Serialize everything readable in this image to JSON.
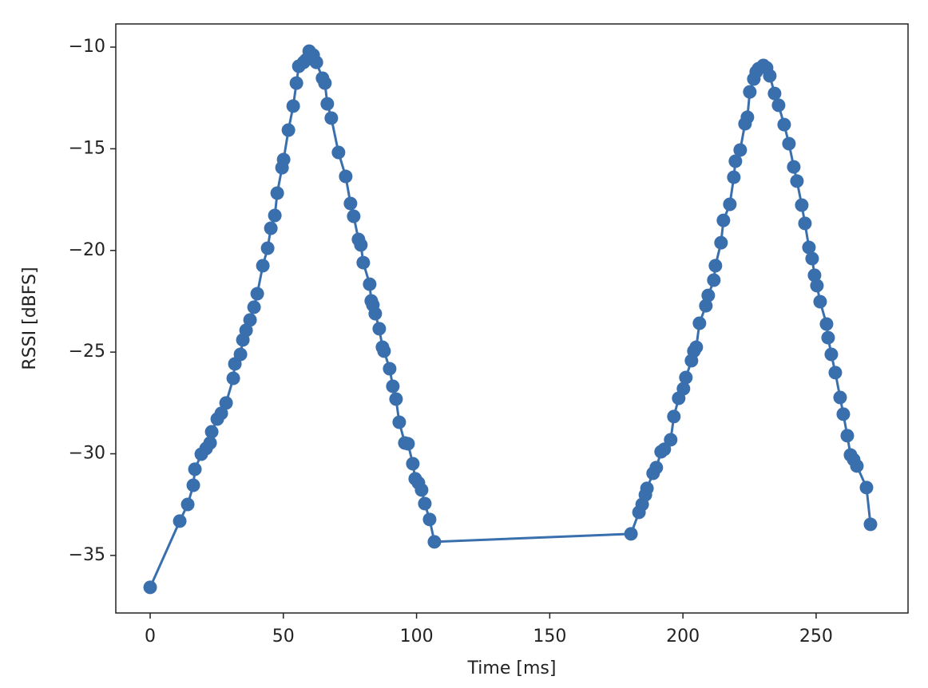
{
  "chart_data": {
    "type": "line",
    "xlabel": "Time [ms]",
    "ylabel": "RSSI [dBFS]",
    "color": "#3a6fae",
    "marker": "o",
    "grid": false,
    "x": [
      0,
      11.1,
      14.1,
      16.2,
      16.8,
      19.2,
      21.0,
      22.5,
      23.1,
      25.2,
      26.7,
      28.5,
      31.2,
      31.8,
      33.9,
      34.8,
      36.0,
      37.5,
      39.0,
      40.2,
      42.3,
      44.1,
      45.3,
      46.8,
      47.7,
      49.5,
      50.1,
      51.9,
      53.7,
      54.9,
      55.8,
      57.6,
      58.5,
      59.7,
      61.2,
      62.4,
      64.7,
      65.6,
      66.5,
      68.0,
      70.7,
      73.4,
      75.2,
      76.4,
      78.2,
      79.1,
      80.0,
      82.4,
      83.0,
      83.6,
      84.5,
      86.0,
      87.2,
      87.8,
      89.9,
      91.1,
      92.3,
      93.5,
      95.6,
      96.8,
      98.6,
      99.5,
      100.7,
      101.9,
      103.1,
      104.9,
      106.7,
      180.5,
      183.5,
      184.7,
      185.9,
      186.5,
      188.8,
      190.0,
      191.8,
      193.0,
      195.4,
      196.6,
      198.4,
      200.2,
      201.1,
      203.2,
      204.1,
      205.0,
      206.2,
      208.6,
      209.5,
      211.6,
      212.2,
      214.3,
      215.2,
      217.6,
      219.1,
      219.7,
      221.5,
      223.3,
      224.2,
      225.1,
      226.6,
      227.5,
      228.4,
      230.2,
      231.4,
      232.6,
      234.4,
      235.9,
      238.0,
      239.8,
      241.6,
      242.8,
      244.6,
      245.8,
      247.3,
      248.5,
      249.4,
      250.3,
      251.5,
      253.9,
      254.5,
      255.7,
      257.2,
      259.0,
      260.2,
      261.7,
      262.9,
      264.1,
      265.3,
      268.9,
      270.4
    ],
    "values": [
      -36.57,
      -33.31,
      -32.49,
      -31.55,
      -30.76,
      -30.02,
      -29.74,
      -29.47,
      -28.92,
      -28.29,
      -28.01,
      -27.5,
      -26.29,
      -25.58,
      -25.11,
      -24.4,
      -23.93,
      -23.42,
      -22.79,
      -22.13,
      -20.75,
      -19.89,
      -18.91,
      -18.28,
      -17.18,
      -15.93,
      -15.53,
      -14.08,
      -12.9,
      -11.77,
      -10.94,
      -10.75,
      -10.63,
      -10.2,
      -10.39,
      -10.75,
      -11.53,
      -11.77,
      -12.79,
      -13.49,
      -15.18,
      -16.36,
      -17.69,
      -18.32,
      -19.46,
      -19.73,
      -20.6,
      -21.66,
      -22.48,
      -22.68,
      -23.11,
      -23.85,
      -24.76,
      -24.95,
      -25.82,
      -26.68,
      -27.31,
      -28.45,
      -29.47,
      -29.51,
      -30.49,
      -31.23,
      -31.43,
      -31.78,
      -32.45,
      -33.23,
      -34.33,
      -33.94,
      -32.88,
      -32.49,
      -32.02,
      -31.7,
      -30.96,
      -30.68,
      -29.9,
      -29.78,
      -29.31,
      -28.17,
      -27.27,
      -26.8,
      -26.25,
      -25.42,
      -24.95,
      -24.76,
      -23.58,
      -22.72,
      -22.21,
      -21.46,
      -20.75,
      -19.62,
      -18.52,
      -17.73,
      -16.4,
      -15.61,
      -15.06,
      -13.77,
      -13.45,
      -12.2,
      -11.57,
      -11.22,
      -11.06,
      -10.9,
      -11.02,
      -11.41,
      -12.28,
      -12.86,
      -13.81,
      -14.75,
      -15.89,
      -16.59,
      -17.77,
      -18.67,
      -19.85,
      -20.4,
      -21.22,
      -21.73,
      -22.52,
      -23.62,
      -24.29,
      -25.11,
      -26.01,
      -27.23,
      -28.05,
      -29.11,
      -30.06,
      -30.29,
      -30.6,
      -31.66,
      -33.47
    ],
    "xlim": [
      -12.9,
      284.5
    ],
    "xticks": [
      0,
      50,
      100,
      150,
      200,
      250
    ],
    "ylim": [
      -37.83,
      -8.86
    ],
    "yticks": [
      {
        "value": -35,
        "label": "−35"
      },
      {
        "value": -30,
        "label": "−30"
      },
      {
        "value": -25,
        "label": "−25"
      },
      {
        "value": -20,
        "label": "−20"
      },
      {
        "value": -15,
        "label": "−15"
      },
      {
        "value": -10,
        "label": "−10"
      }
    ]
  }
}
